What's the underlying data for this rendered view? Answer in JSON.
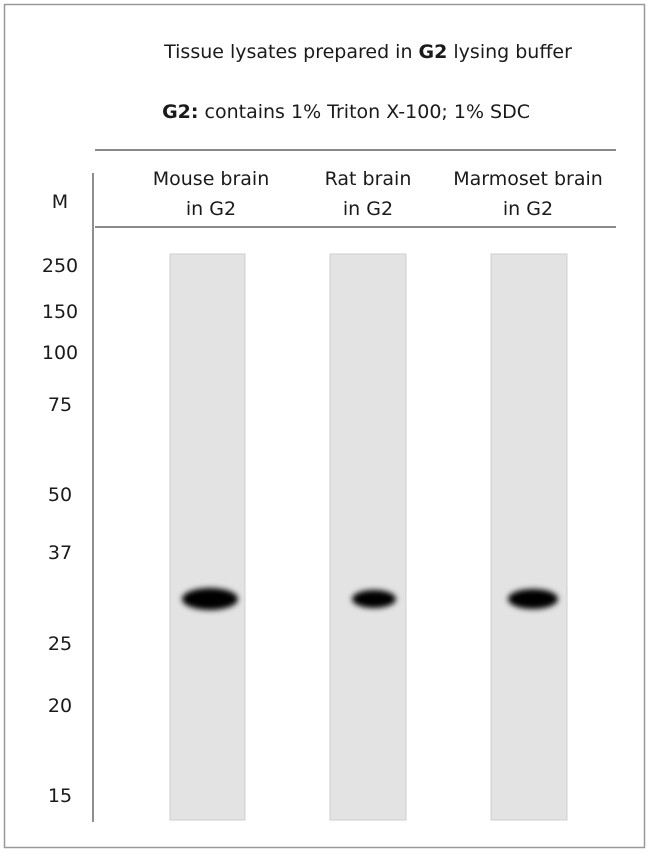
{
  "header": {
    "title": [
      "Tissue lysates prepared in ",
      "G2",
      " lysing buffer"
    ],
    "subtitle": [
      "G2:",
      " contains 1% Triton X-100; 1% SDC"
    ]
  },
  "marker_column": {
    "label": "M",
    "sizes": [
      250,
      150,
      100,
      75,
      50,
      37,
      25,
      20,
      15
    ]
  },
  "lanes": [
    {
      "label": [
        "Mouse brain",
        "in G2"
      ]
    },
    {
      "label": [
        "Rat brain",
        "in G2"
      ]
    },
    {
      "label": [
        "Marmoset brain",
        "in G2"
      ]
    }
  ]
}
